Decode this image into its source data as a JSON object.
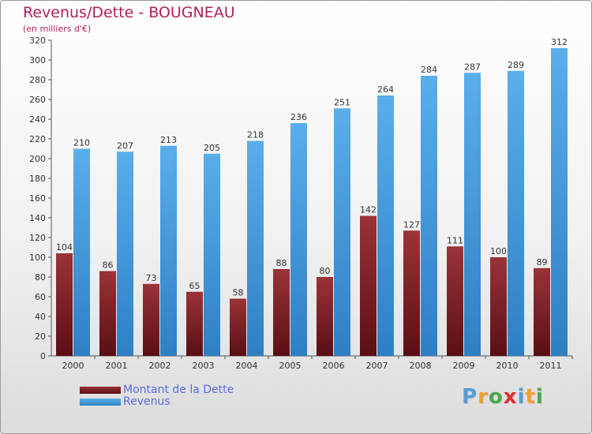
{
  "chart_data": {
    "type": "bar",
    "title": "Revenus/Dette - BOUGNEAU",
    "subtitle": "(en milliers d'€)",
    "categories": [
      "2000",
      "2001",
      "2002",
      "2003",
      "2004",
      "2005",
      "2006",
      "2007",
      "2008",
      "2009",
      "2010",
      "2011"
    ],
    "series": [
      {
        "name": "Montant de la Dette",
        "values": [
          104,
          86,
          73,
          65,
          58,
          88,
          80,
          142,
          127,
          111,
          100,
          89
        ],
        "color": "#7d1f26"
      },
      {
        "name": "Revenus",
        "values": [
          210,
          207,
          213,
          205,
          218,
          236,
          251,
          264,
          284,
          287,
          289,
          312
        ],
        "color": "#4a9fe0"
      }
    ],
    "ylim": [
      0,
      320
    ],
    "yticks": [
      0,
      20,
      40,
      60,
      80,
      100,
      120,
      140,
      160,
      180,
      200,
      220,
      240,
      260,
      280,
      300,
      320
    ],
    "grid": false,
    "legend_position": "bottom-left",
    "data_labels": true
  },
  "brand": {
    "logo_text": "Proxiti",
    "logo_colors": [
      "#5b9bd5",
      "#f0a030",
      "#4aa84a",
      "#e03030",
      "#5b9bd5",
      "#f0a030",
      "#4aa84a"
    ]
  }
}
